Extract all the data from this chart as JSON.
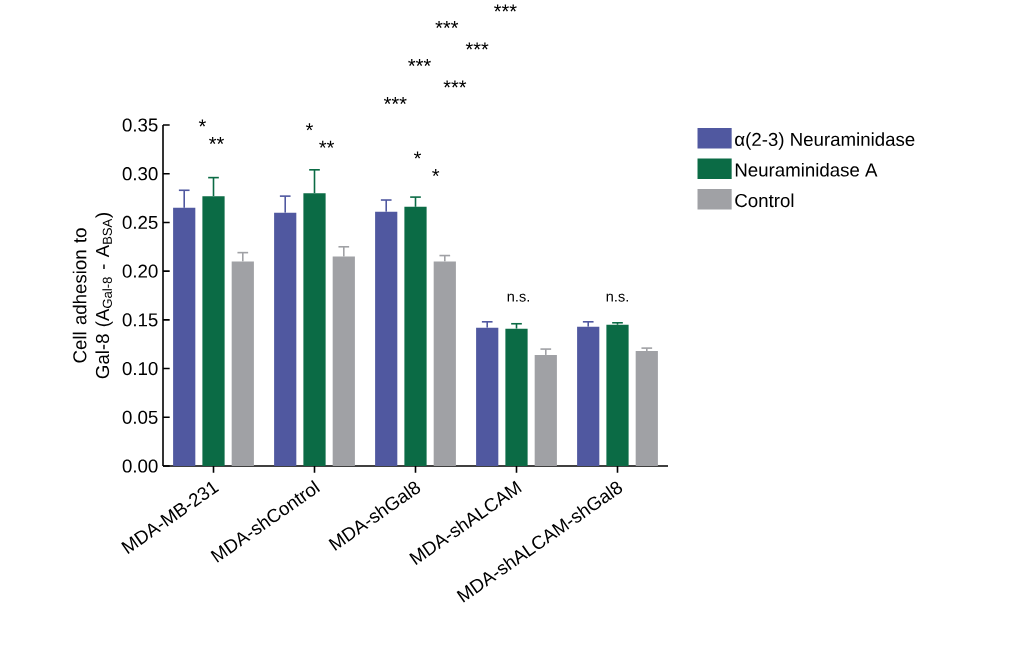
{
  "chart_data": {
    "type": "bar",
    "ylabel": "Cell adhesion to Gal-8 (A$_{Gal-8}$ - A$_{BSA}$)",
    "categories": [
      "MDA-MB-231",
      "MDA-shControl",
      "MDA-shGal8",
      "MDA-shALCAM",
      "MDA-shALCAM-shGal8"
    ],
    "series": [
      {
        "name": "α(2-3) Neuraminidase",
        "color": "#5058a0",
        "values": [
          0.265,
          0.26,
          0.261,
          0.142,
          0.143
        ],
        "errors": [
          0.018,
          0.017,
          0.012,
          0.006,
          0.005
        ]
      },
      {
        "name": "Neuraminidase A",
        "color": "#0b6b45",
        "values": [
          0.277,
          0.28,
          0.266,
          0.141,
          0.145
        ],
        "errors": [
          0.019,
          0.024,
          0.01,
          0.005,
          0.002
        ]
      },
      {
        "name": "Control",
        "color": "#a0a1a5",
        "values": [
          0.21,
          0.215,
          0.21,
          0.114,
          0.118
        ],
        "errors": [
          0.009,
          0.01,
          0.006,
          0.006,
          0.003
        ]
      }
    ],
    "ylim": [
      0,
      0.35
    ],
    "yticks": [
      {
        "value": 0,
        "label": "0.00"
      },
      {
        "value": 0.05,
        "label": "0.05"
      },
      {
        "value": 0.1,
        "label": "0.10"
      },
      {
        "value": 0.15,
        "label": "0.15"
      },
      {
        "value": 0.2,
        "label": "0.20"
      },
      {
        "value": 0.25,
        "label": "0.25"
      },
      {
        "value": 0.3,
        "label": "0.30"
      },
      {
        "value": 0.35,
        "label": "0.35"
      }
    ],
    "legend": "top right",
    "grid": false,
    "annotations": [
      "*",
      "**",
      "*",
      "**",
      "*",
      "*",
      "n.s.",
      "n.s.",
      "***",
      "***",
      "***",
      "***",
      "***",
      "***"
    ]
  }
}
